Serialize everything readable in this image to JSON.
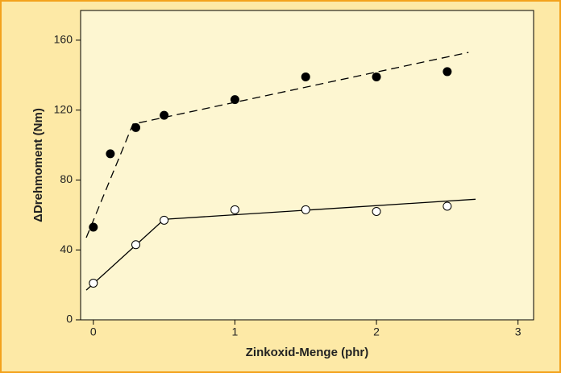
{
  "chart_data": {
    "type": "scatter",
    "x_label": "Zinkoxid-Menge (phr)",
    "y_label": "ΔDrehmoment (Nm)",
    "xlim": [
      -0.09,
      3.11
    ],
    "ylim": [
      0,
      177
    ],
    "xticks": [
      0,
      1,
      2,
      3
    ],
    "yticks": [
      0,
      40,
      80,
      120,
      160
    ],
    "series": [
      {
        "color": "#000000",
        "marker": "filled",
        "fit_dashed": true,
        "x": [
          0,
          0.12,
          0.3,
          0.5,
          1,
          1.5,
          2,
          2.5
        ],
        "values": [
          53,
          95,
          110,
          117,
          126,
          139,
          139,
          142
        ],
        "fit_x": [
          -0.05,
          0.28,
          2.65
        ],
        "fit_y": [
          47,
          112,
          153
        ]
      },
      {
        "color": "#000000",
        "marker": "open",
        "fit_dashed": false,
        "x": [
          0,
          0.3,
          0.5,
          1,
          1.5,
          2,
          2.5
        ],
        "values": [
          21,
          43,
          57,
          63,
          63,
          62,
          65
        ],
        "fit_x": [
          -0.05,
          0.5,
          2.7
        ],
        "fit_y": [
          17,
          57.5,
          69
        ]
      }
    ]
  }
}
